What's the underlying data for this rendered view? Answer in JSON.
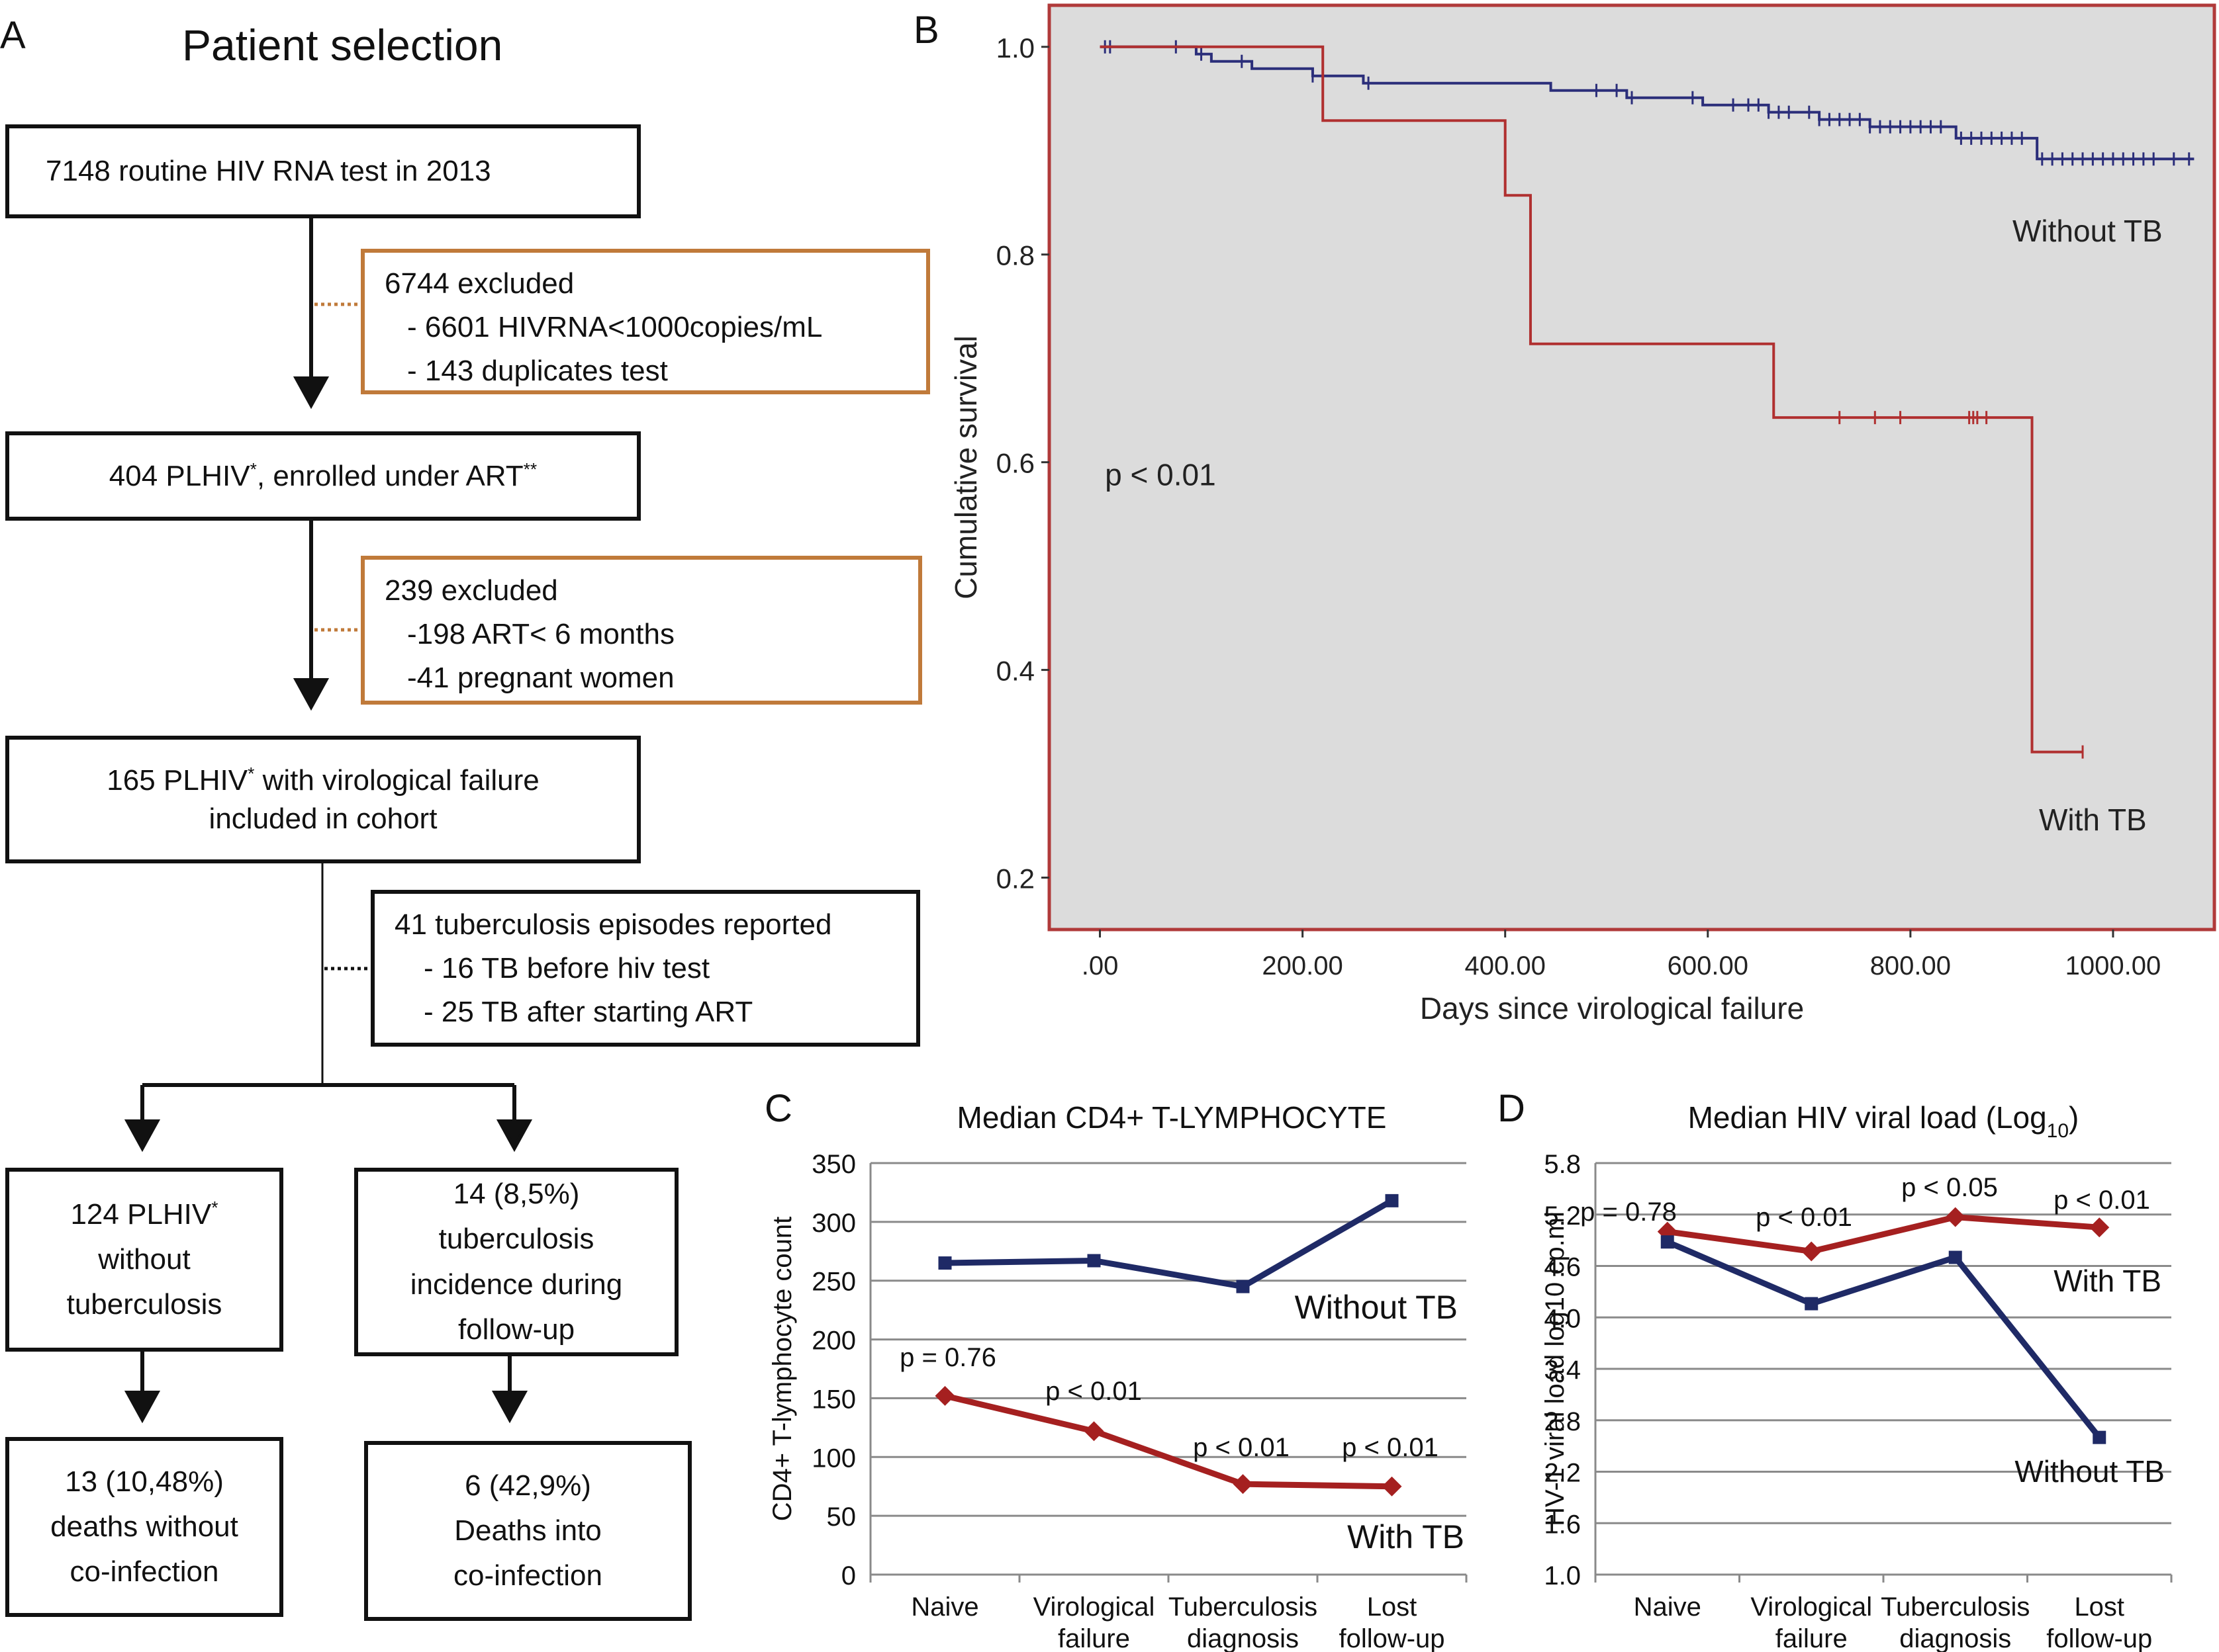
{
  "panel_a": {
    "letter": "A",
    "title": "Patient selection",
    "boxes": {
      "b1": "7148 routine HIV RNA test in 2013",
      "ex1": {
        "head": "6744 excluded",
        "items": [
          "- 6601 HIVRNA<1000copies/mL",
          "- 143 duplicates test"
        ]
      },
      "b2": {
        "pre": "404 PLHIV",
        "sup1": "*",
        "mid": ", enrolled under ART",
        "sup2": "**"
      },
      "ex2": {
        "head": "239 excluded",
        "items": [
          "-198 ART< 6 months",
          "-41 pregnant women"
        ]
      },
      "b3": {
        "pre": "165 PLHIV",
        "sup": "*",
        "post": " with virological failure",
        "line2": "included in cohort"
      },
      "tb": {
        "head": "41 tuberculosis episodes reported",
        "items": [
          "- 16 TB before hiv test",
          "- 25 TB after starting ART"
        ]
      },
      "left": {
        "pre": "124 PLHIV",
        "sup": "*",
        "line2": "without",
        "line3": "tuberculosis"
      },
      "right": {
        "line1": "14 (8,5%)",
        "line2": "tuberculosis",
        "line3": "incidence during",
        "line4": "follow-up"
      },
      "left_out": {
        "line1": "13 (10,48%)",
        "line2": "deaths without",
        "line3": "co-infection"
      },
      "right_out": {
        "line1": "6 (42,9%)",
        "line2": "Deaths into",
        "line3": "co-infection"
      }
    },
    "colors": {
      "excluded_border": "#c07a3a",
      "box_border": "#111111"
    }
  },
  "chart_data": [
    {
      "panel": "B",
      "type": "line",
      "subtype": "kaplan-meier step",
      "title": "",
      "xlabel": "Days since virological failure",
      "ylabel": "Cumulative survival",
      "xlim": [
        -50,
        1100
      ],
      "ylim": [
        0.15,
        1.04
      ],
      "xticks": [
        0,
        200,
        400,
        600,
        800,
        1000
      ],
      "xtick_labels": [
        ".00",
        "200.00",
        "400.00",
        "600.00",
        "800.00",
        "1000.00"
      ],
      "yticks": [
        0.2,
        0.4,
        0.6,
        0.8,
        1.0
      ],
      "ytick_labels": [
        "0.2",
        "0.4",
        "0.6",
        "0.8",
        "1.0"
      ],
      "background": "#dcdcdc",
      "border_color": "#b03a3a",
      "annotation": "p < 0.01",
      "series": [
        {
          "name": "Without TB",
          "color": "#2b2e7a",
          "steps": [
            [
              0,
              1.0
            ],
            [
              80,
              1.0
            ],
            [
              95,
              0.993
            ],
            [
              110,
              0.986
            ],
            [
              150,
              0.979
            ],
            [
              200,
              0.979
            ],
            [
              210,
              0.972
            ],
            [
              260,
              0.965
            ],
            [
              440,
              0.965
            ],
            [
              445,
              0.958
            ],
            [
              520,
              0.951
            ],
            [
              590,
              0.951
            ],
            [
              595,
              0.944
            ],
            [
              650,
              0.944
            ],
            [
              660,
              0.937
            ],
            [
              710,
              0.93
            ],
            [
              760,
              0.923
            ],
            [
              840,
              0.923
            ],
            [
              845,
              0.912
            ],
            [
              920,
              0.912
            ],
            [
              925,
              0.892
            ],
            [
              1080,
              0.892
            ]
          ],
          "censors": [
            5,
            10,
            75,
            100,
            140,
            210,
            265,
            490,
            510,
            525,
            585,
            625,
            640,
            650,
            660,
            670,
            680,
            700,
            710,
            720,
            730,
            740,
            750,
            760,
            770,
            780,
            790,
            800,
            810,
            820,
            830,
            850,
            860,
            870,
            880,
            890,
            900,
            910,
            930,
            940,
            950,
            960,
            970,
            980,
            990,
            1000,
            1010,
            1020,
            1030,
            1040,
            1060,
            1075
          ],
          "label": "Without TB"
        },
        {
          "name": "With TB",
          "color": "#b03030",
          "steps": [
            [
              0,
              1.0
            ],
            [
              220,
              1.0
            ],
            [
              220,
              0.929
            ],
            [
              400,
              0.929
            ],
            [
              400,
              0.857
            ],
            [
              425,
              0.857
            ],
            [
              425,
              0.714
            ],
            [
              665,
              0.714
            ],
            [
              665,
              0.643
            ],
            [
              920,
              0.643
            ],
            [
              920,
              0.321
            ],
            [
              970,
              0.321
            ]
          ],
          "censors": [
            730,
            765,
            790,
            858,
            862,
            866,
            875,
            970
          ],
          "label": "With TB"
        }
      ]
    },
    {
      "panel": "C",
      "type": "line",
      "title": "Median CD4+ T-LYMPHOCYTE",
      "xlabel": "",
      "ylabel": "CD4+ T-lymphocyte count",
      "categories": [
        "Naive",
        "Virological failure",
        "Tuberculosis diagnosis",
        "Lost follow-up"
      ],
      "ylim": [
        0,
        350
      ],
      "yticks": [
        0,
        50,
        100,
        150,
        200,
        250,
        300,
        350
      ],
      "grid": true,
      "series": [
        {
          "name": "Without TB",
          "color": "#1f2a66",
          "marker": "square",
          "values": [
            265,
            267,
            245,
            318
          ]
        },
        {
          "name": "With TB",
          "color": "#a52020",
          "marker": "diamond",
          "values": [
            152,
            122,
            77,
            75
          ]
        }
      ],
      "pvalues": [
        "p = 0.76",
        "p < 0.01",
        "p < 0.01",
        "p < 0.01"
      ],
      "series_labels": {
        "without": "Without TB",
        "with": "With TB"
      }
    },
    {
      "panel": "D",
      "type": "line",
      "title": "Median HIV viral load (Log",
      "title_sub": "10",
      "title_end": ")",
      "xlabel": "",
      "ylabel": "HV-1 viral load log10 cp.ml",
      "categories": [
        "Naive",
        "Virological failure",
        "Tuberculosis diagnosis",
        "Lost follow-up"
      ],
      "ylim": [
        1.0,
        5.8
      ],
      "yticks": [
        1.0,
        1.6,
        2.2,
        2.8,
        3.4,
        4.0,
        4.6,
        5.2,
        5.8
      ],
      "ytick_labels": [
        "1.0",
        "1.6",
        "2.2",
        "2.8",
        "3.4",
        "4.0",
        "4.6",
        "5.2",
        "5.8"
      ],
      "grid": true,
      "series": [
        {
          "name": "With TB",
          "color": "#a52020",
          "marker": "diamond",
          "values": [
            5.0,
            4.77,
            5.17,
            5.05
          ]
        },
        {
          "name": "Without TB",
          "color": "#1f2a66",
          "marker": "square",
          "values": [
            4.88,
            4.16,
            4.7,
            2.6
          ]
        }
      ],
      "pvalues": [
        "p = 0.78",
        "p < 0.01",
        "p < 0.05",
        "p < 0.01"
      ],
      "series_labels": {
        "with": "With  TB",
        "without": "Without  TB"
      }
    }
  ]
}
